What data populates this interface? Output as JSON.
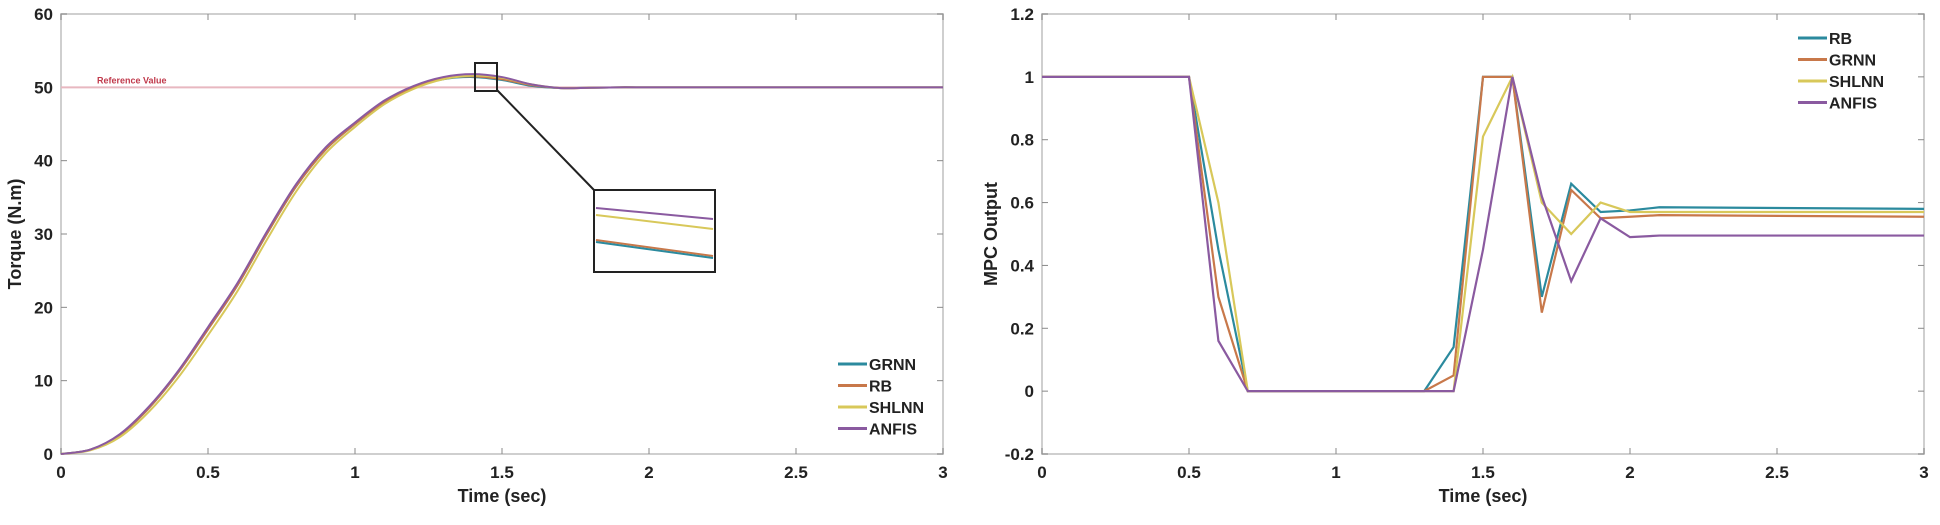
{
  "chart_data": [
    {
      "type": "line",
      "xlabel": "Time (sec)",
      "ylabel": "Torque (N.m)",
      "xlim": [
        0,
        3
      ],
      "ylim": [
        0,
        60
      ],
      "xticks": [
        "0",
        "0.5",
        "1",
        "1.5",
        "2",
        "2.5",
        "3"
      ],
      "yticks": [
        "0",
        "10",
        "20",
        "30",
        "40",
        "50",
        "60"
      ],
      "grid": false,
      "legend_placement": "bottom-right",
      "annotation": "Reference Value",
      "reference_value": 50,
      "reference_color": "#c0394b",
      "x": [
        0,
        0.1,
        0.2,
        0.3,
        0.4,
        0.5,
        0.6,
        0.7,
        0.8,
        0.9,
        1.0,
        1.1,
        1.2,
        1.3,
        1.4,
        1.5,
        1.6,
        1.7,
        1.8,
        1.9,
        2.0,
        2.5,
        3.0
      ],
      "series": [
        {
          "name": "GRNN",
          "color": "#2b8a9e",
          "values": [
            0,
            0.6,
            2.6,
            6.3,
            11.2,
            17,
            23,
            30,
            36.5,
            41.5,
            45,
            48,
            50,
            51.1,
            51.4,
            51,
            50.2,
            49.9,
            49.95,
            50,
            50,
            50,
            50
          ]
        },
        {
          "name": "RB",
          "color": "#c8784a",
          "values": [
            0,
            0.6,
            2.6,
            6.3,
            11.2,
            17,
            23,
            30,
            36.5,
            41.5,
            45,
            48,
            50,
            51.2,
            51.5,
            51.1,
            50.3,
            49.9,
            49.95,
            50,
            50,
            50,
            50
          ]
        },
        {
          "name": "SHLNN",
          "color": "#d8c85a",
          "values": [
            0,
            0.5,
            2.3,
            5.8,
            10.5,
            16.2,
            22.2,
            29.2,
            35.8,
            41,
            44.6,
            47.7,
            49.8,
            51.1,
            51.6,
            51.3,
            50.4,
            49.9,
            49.95,
            50,
            50,
            50,
            50
          ]
        },
        {
          "name": "ANFIS",
          "color": "#8a5aa0",
          "values": [
            0,
            0.6,
            2.7,
            6.5,
            11.4,
            17.3,
            23.3,
            30.3,
            36.8,
            41.8,
            45.2,
            48.2,
            50.2,
            51.4,
            51.8,
            51.4,
            50.4,
            49.9,
            49.95,
            50,
            50,
            50,
            50
          ]
        }
      ]
    },
    {
      "type": "line",
      "xlabel": "Time (sec)",
      "ylabel": "MPC Output",
      "xlim": [
        0,
        3
      ],
      "ylim": [
        -0.2,
        1.2
      ],
      "xticks": [
        "0",
        "0.5",
        "1",
        "1.5",
        "2",
        "2.5",
        "3"
      ],
      "yticks": [
        "-0.2",
        "0",
        "0.2",
        "0.4",
        "0.6",
        "0.8",
        "1",
        "1.2"
      ],
      "grid": false,
      "legend_placement": "top-right",
      "x": [
        0,
        0.5,
        0.6,
        0.7,
        1.3,
        1.4,
        1.5,
        1.6,
        1.7,
        1.8,
        1.9,
        2.0,
        2.1,
        3.0
      ],
      "series": [
        {
          "name": "RB",
          "color": "#2b8a9e",
          "values": [
            1,
            1,
            0.45,
            0,
            0,
            0.14,
            1,
            1,
            0.3,
            0.66,
            0.57,
            0.575,
            0.585,
            0.58
          ]
        },
        {
          "name": "GRNN",
          "color": "#c8784a",
          "values": [
            1,
            1,
            0.3,
            0,
            0,
            0.05,
            1,
            1,
            0.25,
            0.64,
            0.55,
            0.555,
            0.56,
            0.555
          ]
        },
        {
          "name": "SHLNN",
          "color": "#d8c85a",
          "values": [
            1,
            1,
            0.6,
            0,
            0,
            0,
            0.81,
            1,
            0.6,
            0.5,
            0.6,
            0.57,
            0.57,
            0.57
          ]
        },
        {
          "name": "ANFIS",
          "color": "#8a5aa0",
          "values": [
            1,
            1,
            0.16,
            0,
            0,
            0,
            0.45,
            1,
            0.62,
            0.35,
            0.55,
            0.49,
            0.495,
            0.495
          ]
        }
      ]
    }
  ]
}
